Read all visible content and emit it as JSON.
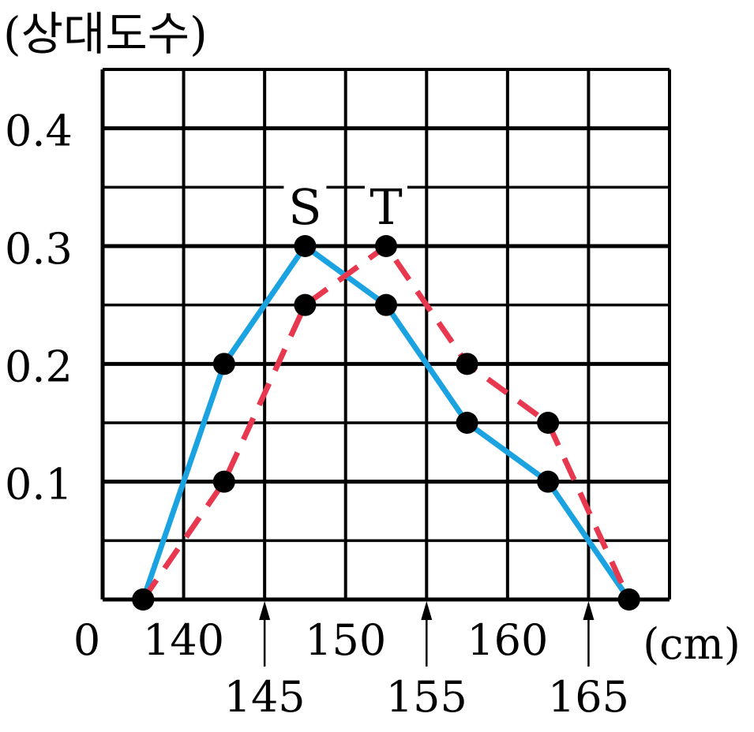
{
  "chart_data": {
    "type": "line",
    "ylabel": "(상대도수)",
    "xunit": "(cm)",
    "origin_label": "0",
    "x_ticks_top": [
      "140",
      "150",
      "160"
    ],
    "x_ticks_bottom": [
      "145",
      "155",
      "165"
    ],
    "y_ticks": [
      "0.1",
      "0.2",
      "0.3",
      "0.4"
    ],
    "xlim": [
      135,
      170
    ],
    "ylim": [
      0,
      0.45
    ],
    "grid": true,
    "series": [
      {
        "name": "S",
        "color": "#1AA3E0",
        "style": "solid",
        "x": [
          137.5,
          142.5,
          147.5,
          152.5,
          157.5,
          162.5,
          167.5
        ],
        "y": [
          0,
          0.2,
          0.3,
          0.25,
          0.15,
          0.1,
          0
        ]
      },
      {
        "name": "T",
        "color": "#E8384F",
        "style": "dashed",
        "x": [
          137.5,
          142.5,
          147.5,
          152.5,
          157.5,
          162.5,
          167.5
        ],
        "y": [
          0,
          0.1,
          0.25,
          0.3,
          0.2,
          0.15,
          0
        ]
      }
    ]
  }
}
